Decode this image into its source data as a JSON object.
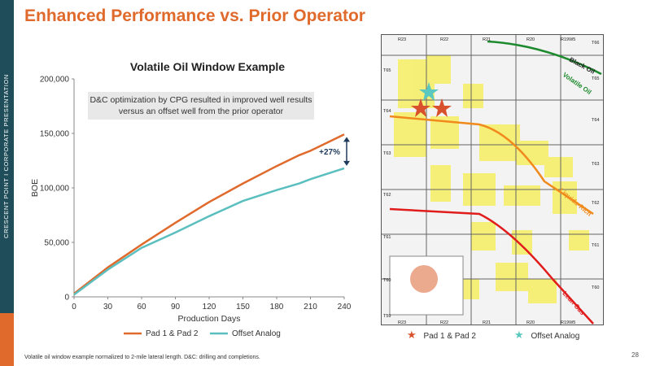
{
  "sidebar": {
    "text": "CRESCENT POINT  I  CORPORATE PRESENTATION"
  },
  "page_title": "Enhanced Performance vs. Prior Operator",
  "chart_data": {
    "type": "line",
    "title": "Volatile Oil Window Example",
    "annotation": "D&C optimization by CPG resulted in improved well results versus an offset well from the prior operator",
    "xlabel": "Production Days",
    "ylabel": "BOE",
    "xlim": [
      0,
      240
    ],
    "ylim": [
      0,
      200000
    ],
    "x_ticks": [
      "0",
      "30",
      "60",
      "90",
      "120",
      "150",
      "180",
      "210",
      "240"
    ],
    "y_ticks": [
      "0",
      "50,000",
      "100,000",
      "150,000",
      "200,000"
    ],
    "x": [
      0,
      30,
      60,
      90,
      120,
      150,
      180,
      200,
      210,
      240
    ],
    "series": [
      {
        "name": "Pad 1 & Pad 2",
        "color": "#e06a2c",
        "values": [
          3000,
          27000,
          48000,
          68000,
          87000,
          104000,
          120000,
          130000,
          134000,
          149000
        ]
      },
      {
        "name": "Offset Analog",
        "color": "#5bbfbf",
        "values": [
          2000,
          25000,
          45000,
          59000,
          74000,
          88000,
          98000,
          104000,
          108000,
          118000
        ]
      }
    ],
    "callout": "+27%",
    "legend_position": "bottom"
  },
  "map": {
    "township_labels_top": [
      "R23",
      "R22",
      "R21",
      "R20",
      "R19W5"
    ],
    "township_labels_bottom": [
      "R23",
      "R22",
      "R21",
      "R20",
      "R19W5"
    ],
    "township_labels_left": [
      "T65",
      "T64",
      "T63",
      "T62",
      "T61",
      "T60",
      "T59"
    ],
    "township_labels_right": [
      "T66",
      "T65",
      "T64",
      "T63",
      "T62",
      "T61",
      "T60"
    ],
    "zone_labels": [
      "Black Oil",
      "Volatile Oil",
      "Liquids-Rich",
      "Lean Gas"
    ],
    "legend": [
      {
        "label": "Pad 1 & Pad 2",
        "color": "#d9512c",
        "icon": "star-icon"
      },
      {
        "label": "Offset Analog",
        "color": "#5bc8c0",
        "icon": "star-icon"
      }
    ]
  },
  "footnote": "Volatile oil window example normalized to 2-mile lateral length. D&C: drilling and completions.",
  "page_number": "28"
}
